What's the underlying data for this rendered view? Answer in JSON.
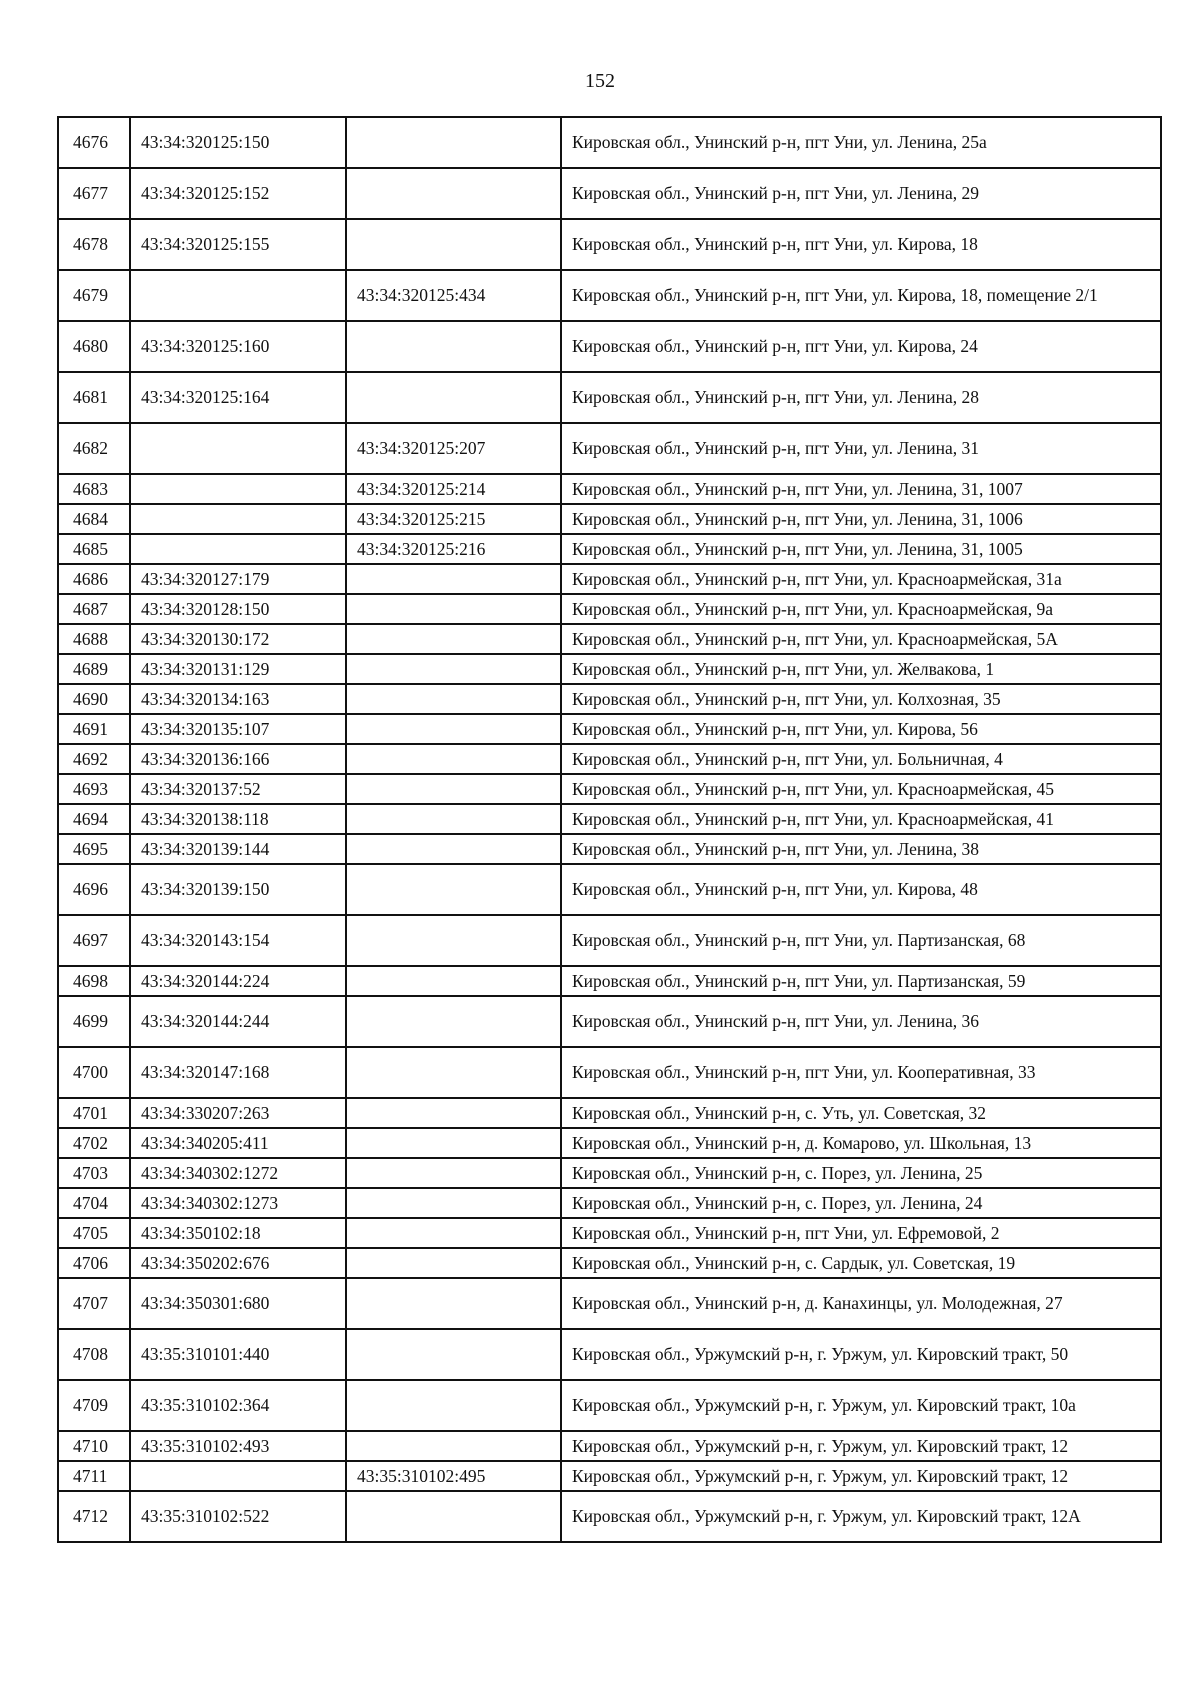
{
  "page_number": "152",
  "rows": [
    {
      "n": "4676",
      "cad_land": "43:34:320125:150",
      "cad_room": "",
      "address": "Кировская обл., Унинский р-н, пгт Уни, ул. Ленина, 25а"
    },
    {
      "n": "4677",
      "cad_land": "43:34:320125:152",
      "cad_room": "",
      "address": "Кировская обл., Унинский р-н, пгт Уни, ул. Ленина, 29"
    },
    {
      "n": "4678",
      "cad_land": "43:34:320125:155",
      "cad_room": "",
      "address": "Кировская обл., Унинский р-н, пгт Уни, ул. Кирова, 18"
    },
    {
      "n": "4679",
      "cad_land": "",
      "cad_room": "43:34:320125:434",
      "address": "Кировская обл., Унинский р-н,  пгт Уни, ул. Кирова, 18, помещение 2/1"
    },
    {
      "n": "4680",
      "cad_land": "43:34:320125:160",
      "cad_room": "",
      "address": "Кировская обл., Унинский р-н, пгт Уни, ул. Кирова, 24"
    },
    {
      "n": "4681",
      "cad_land": "43:34:320125:164",
      "cad_room": "",
      "address": "Кировская обл., Унинский р-н, пгт Уни, ул. Ленина, 28"
    },
    {
      "n": "4682",
      "cad_land": "",
      "cad_room": "43:34:320125:207",
      "address": "Кировская обл., Унинский р-н, пгт Уни, ул. Ленина, 31"
    },
    {
      "n": "4683",
      "cad_land": "",
      "cad_room": "43:34:320125:214",
      "address": "Кировская обл., Унинский р-н, пгт Уни, ул. Ленина, 31, 1007"
    },
    {
      "n": "4684",
      "cad_land": "",
      "cad_room": "43:34:320125:215",
      "address": "Кировская обл., Унинский р-н, пгт Уни, ул. Ленина, 31, 1006"
    },
    {
      "n": "4685",
      "cad_land": "",
      "cad_room": "43:34:320125:216",
      "address": "Кировская обл., Унинский р-н, пгт Уни, ул. Ленина, 31, 1005"
    },
    {
      "n": "4686",
      "cad_land": "43:34:320127:179",
      "cad_room": "",
      "address": "Кировская обл., Унинский р-н, пгт Уни, ул. Красноармейская, 31а"
    },
    {
      "n": "4687",
      "cad_land": "43:34:320128:150",
      "cad_room": "",
      "address": "Кировская обл., Унинский р-н, пгт Уни, ул. Красноармейская, 9а"
    },
    {
      "n": "4688",
      "cad_land": "43:34:320130:172",
      "cad_room": "",
      "address": "Кировская обл., Унинский р-н, пгт Уни, ул. Красноармейская, 5А"
    },
    {
      "n": "4689",
      "cad_land": "43:34:320131:129",
      "cad_room": "",
      "address": "Кировская обл., Унинский р-н, пгт Уни, ул. Желвакова, 1"
    },
    {
      "n": "4690",
      "cad_land": "43:34:320134:163",
      "cad_room": "",
      "address": "Кировская обл., Унинский р-н, пгт Уни, ул. Колхозная, 35"
    },
    {
      "n": "4691",
      "cad_land": "43:34:320135:107",
      "cad_room": "",
      "address": "Кировская обл., Унинский р-н, пгт Уни, ул. Кирова, 56"
    },
    {
      "n": "4692",
      "cad_land": "43:34:320136:166",
      "cad_room": "",
      "address": "Кировская обл., Унинский р-н, пгт Уни, ул. Больничная, 4"
    },
    {
      "n": "4693",
      "cad_land": "43:34:320137:52",
      "cad_room": "",
      "address": "Кировская обл., Унинский р-н, пгт Уни, ул. Красноармейская, 45"
    },
    {
      "n": "4694",
      "cad_land": "43:34:320138:118",
      "cad_room": "",
      "address": "Кировская обл., Унинский р-н, пгт Уни, ул. Красноармейская, 41"
    },
    {
      "n": "4695",
      "cad_land": "43:34:320139:144",
      "cad_room": "",
      "address": "Кировская обл., Унинский р-н, пгт Уни, ул. Ленина, 38"
    },
    {
      "n": "4696",
      "cad_land": "43:34:320139:150",
      "cad_room": "",
      "address": "Кировская обл., Унинский р-н, пгт Уни, ул. Кирова, 48"
    },
    {
      "n": "4697",
      "cad_land": "43:34:320143:154",
      "cad_room": "",
      "address": "Кировская обл., Унинский р-н, пгт Уни, ул. Партизанская, 68"
    },
    {
      "n": "4698",
      "cad_land": "43:34:320144:224",
      "cad_room": "",
      "address": "Кировская обл., Унинский р-н, пгт Уни, ул. Партизанская, 59"
    },
    {
      "n": "4699",
      "cad_land": "43:34:320144:244",
      "cad_room": "",
      "address": "Кировская обл., Унинский р-н, пгт Уни, ул. Ленина, 36"
    },
    {
      "n": "4700",
      "cad_land": "43:34:320147:168",
      "cad_room": "",
      "address": "Кировская обл., Унинский р-н, пгт Уни, ул. Кооперативная, 33"
    },
    {
      "n": "4701",
      "cad_land": "43:34:330207:263",
      "cad_room": "",
      "address": "Кировская обл., Унинский р-н, с. Уть, ул. Советская, 32"
    },
    {
      "n": "4702",
      "cad_land": "43:34:340205:411",
      "cad_room": "",
      "address": "Кировская обл., Унинский р-н, д. Комарово, ул. Школьная, 13"
    },
    {
      "n": "4703",
      "cad_land": "43:34:340302:1272",
      "cad_room": "",
      "address": "Кировская обл., Унинский р-н, с. Порез, ул. Ленина, 25"
    },
    {
      "n": "4704",
      "cad_land": "43:34:340302:1273",
      "cad_room": "",
      "address": "Кировская обл., Унинский р-н, с. Порез, ул. Ленина, 24"
    },
    {
      "n": "4705",
      "cad_land": "43:34:350102:18",
      "cad_room": "",
      "address": "Кировская обл., Унинский р-н, пгт Уни, ул. Ефремовой, 2"
    },
    {
      "n": "4706",
      "cad_land": "43:34:350202:676",
      "cad_room": "",
      "address": "Кировская обл., Унинский р-н, с. Сардык, ул. Советская, 19"
    },
    {
      "n": "4707",
      "cad_land": "43:34:350301:680",
      "cad_room": "",
      "address": "Кировская обл., Унинский р-н, д. Канахинцы, ул. Молодежная, 27"
    },
    {
      "n": "4708",
      "cad_land": "43:35:310101:440",
      "cad_room": "",
      "address": "Кировская обл., Уржумский р-н, г. Уржум, ул. Кировский тракт, 50"
    },
    {
      "n": "4709",
      "cad_land": "43:35:310102:364",
      "cad_room": "",
      "address": "Кировская обл., Уржумский р-н, г. Уржум, ул. Кировский тракт, 10а"
    },
    {
      "n": "4710",
      "cad_land": "43:35:310102:493",
      "cad_room": "",
      "address": "Кировская обл., Уржумский р-н, г. Уржум, ул. Кировский тракт, 12"
    },
    {
      "n": "4711",
      "cad_land": "",
      "cad_room": "43:35:310102:495",
      "address": "Кировская обл., Уржумский р-н, г. Уржум, ул. Кировский тракт, 12"
    },
    {
      "n": "4712",
      "cad_land": "43:35:310102:522",
      "cad_room": "",
      "address": "Кировская обл., Уржумский р-н, г. Уржум, ул. Кировский тракт, 12А"
    }
  ]
}
